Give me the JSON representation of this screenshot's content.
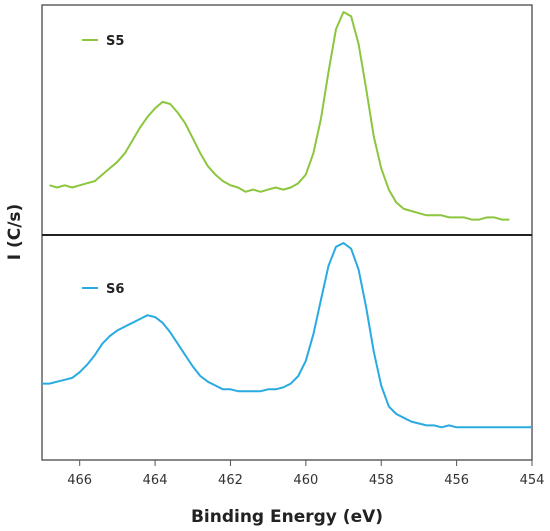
{
  "chart_data": {
    "type": "line",
    "xlabel": "Binding Energy (eV)",
    "ylabel": "I (C/s)",
    "xlim": [
      467,
      454
    ],
    "x_ticks": [
      466,
      464,
      462,
      460,
      458,
      456,
      454
    ],
    "x_tick_labels": [
      "466",
      "464",
      "462",
      "460",
      "458",
      "456",
      "454"
    ],
    "grid": false,
    "legend": "top-left",
    "panels": [
      {
        "position": "top",
        "ylim": [
          0,
          1
        ],
        "series": [
          {
            "name": "S5",
            "color": "#8cc63f",
            "x": [
              466.8,
              466.6,
              466.4,
              466.2,
              466.0,
              465.8,
              465.6,
              465.4,
              465.2,
              465.0,
              464.8,
              464.6,
              464.4,
              464.2,
              464.0,
              463.8,
              463.6,
              463.4,
              463.2,
              463.0,
              462.8,
              462.6,
              462.4,
              462.2,
              462.0,
              461.8,
              461.6,
              461.4,
              461.2,
              461.0,
              460.8,
              460.6,
              460.4,
              460.2,
              460.0,
              459.8,
              459.6,
              459.4,
              459.2,
              459.0,
              458.8,
              458.6,
              458.4,
              458.2,
              458.0,
              457.8,
              457.6,
              457.4,
              457.2,
              457.0,
              456.8,
              456.6,
              456.4,
              456.2,
              456.0,
              455.8,
              455.6,
              455.4,
              455.2,
              455.0,
              454.8,
              454.6
            ],
            "y": [
              0.19,
              0.18,
              0.19,
              0.18,
              0.19,
              0.2,
              0.21,
              0.24,
              0.27,
              0.3,
              0.34,
              0.4,
              0.46,
              0.51,
              0.55,
              0.58,
              0.57,
              0.53,
              0.48,
              0.41,
              0.34,
              0.28,
              0.24,
              0.21,
              0.19,
              0.18,
              0.16,
              0.17,
              0.16,
              0.17,
              0.18,
              0.17,
              0.18,
              0.2,
              0.24,
              0.34,
              0.5,
              0.72,
              0.92,
              1.0,
              0.98,
              0.85,
              0.64,
              0.42,
              0.27,
              0.17,
              0.11,
              0.08,
              0.07,
              0.06,
              0.05,
              0.05,
              0.05,
              0.04,
              0.04,
              0.04,
              0.03,
              0.03,
              0.04,
              0.04,
              0.03,
              0.03
            ]
          }
        ]
      },
      {
        "position": "bottom",
        "ylim": [
          0,
          1
        ],
        "series": [
          {
            "name": "S6",
            "color": "#29abe2",
            "x": [
              467.0,
              466.8,
              466.6,
              466.4,
              466.2,
              466.0,
              465.8,
              465.6,
              465.4,
              465.2,
              465.0,
              464.8,
              464.6,
              464.4,
              464.2,
              464.0,
              463.8,
              463.6,
              463.4,
              463.2,
              463.0,
              462.8,
              462.6,
              462.4,
              462.2,
              462.0,
              461.8,
              461.6,
              461.4,
              461.2,
              461.0,
              460.8,
              460.6,
              460.4,
              460.2,
              460.0,
              459.8,
              459.6,
              459.4,
              459.2,
              459.0,
              458.8,
              458.6,
              458.4,
              458.2,
              458.0,
              457.8,
              457.6,
              457.4,
              457.2,
              457.0,
              456.8,
              456.6,
              456.4,
              456.2,
              456.0,
              455.8,
              455.6,
              455.4,
              455.2,
              455.0,
              454.8,
              454.6,
              454.4,
              454.2,
              454.0
            ],
            "y": [
              0.26,
              0.26,
              0.27,
              0.28,
              0.29,
              0.32,
              0.36,
              0.41,
              0.47,
              0.51,
              0.54,
              0.56,
              0.58,
              0.6,
              0.62,
              0.61,
              0.58,
              0.53,
              0.47,
              0.41,
              0.35,
              0.3,
              0.27,
              0.25,
              0.23,
              0.23,
              0.22,
              0.22,
              0.22,
              0.22,
              0.23,
              0.23,
              0.24,
              0.26,
              0.3,
              0.38,
              0.52,
              0.7,
              0.88,
              0.98,
              1.0,
              0.97,
              0.86,
              0.66,
              0.43,
              0.25,
              0.14,
              0.1,
              0.08,
              0.06,
              0.05,
              0.04,
              0.04,
              0.03,
              0.04,
              0.03,
              0.03,
              0.03,
              0.03,
              0.03,
              0.03,
              0.03,
              0.03,
              0.03,
              0.03,
              0.03
            ]
          }
        ]
      }
    ]
  }
}
